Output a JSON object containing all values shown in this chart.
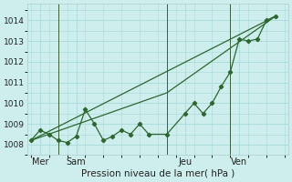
{
  "xlabel": "Pression niveau de la mer( hPa )",
  "bg_color": "#ceeeed",
  "grid_color": "#a8d8d8",
  "line_color": "#2d6630",
  "vline_color": "#3a5f3a",
  "ylim": [
    1007.5,
    1014.8
  ],
  "xlim": [
    -0.2,
    14.2
  ],
  "yticks": [
    1008,
    1009,
    1010,
    1011,
    1012,
    1013,
    1014
  ],
  "day_labels": [
    "Mer",
    "Sam",
    "Jeu",
    "Ven"
  ],
  "day_positions": [
    0.5,
    2.5,
    8.5,
    11.5
  ],
  "vline_positions": [
    1.5,
    7.5,
    11.0
  ],
  "series1_x": [
    0.0,
    0.5,
    1.0,
    1.5,
    2.0,
    2.5,
    3.0,
    3.5,
    4.0,
    4.5,
    5.0,
    5.5,
    6.0,
    6.5,
    7.5,
    8.5,
    9.0,
    9.5,
    10.0,
    10.5,
    11.0,
    11.5,
    12.0,
    12.5,
    13.0,
    13.5
  ],
  "series1_y": [
    1008.2,
    1008.7,
    1008.5,
    1008.2,
    1008.1,
    1008.4,
    1009.7,
    1009.0,
    1008.2,
    1008.4,
    1008.7,
    1008.5,
    1009.0,
    1008.5,
    1008.5,
    1009.5,
    1010.0,
    1009.5,
    1010.0,
    1010.8,
    1011.5,
    1013.1,
    1013.0,
    1013.1,
    1014.0,
    1014.2
  ],
  "series2_x": [
    0.0,
    13.5
  ],
  "series2_y": [
    1008.2,
    1014.2
  ],
  "series3_x": [
    0.0,
    7.5,
    13.5
  ],
  "series3_y": [
    1008.2,
    1010.5,
    1014.2
  ]
}
